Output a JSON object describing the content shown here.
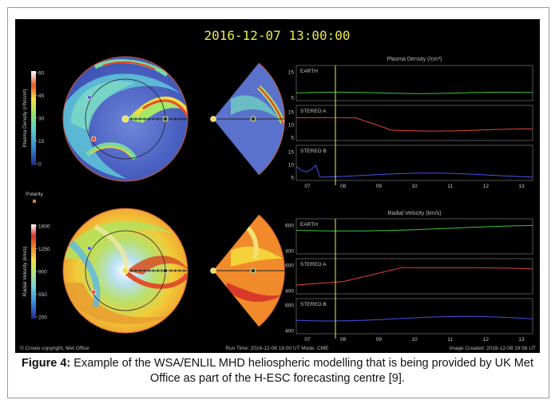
{
  "timestamp": "2016-12-07 13:00:00",
  "colorbars": {
    "density": {
      "label": "Plasma Density (r²N/cm³)",
      "ticks": [
        "60",
        "45",
        "30",
        "15",
        "0"
      ]
    },
    "polarity": {
      "label": "Polarity"
    },
    "velocity": {
      "label": "Radial Velocity (km/s)",
      "ticks": [
        "1600",
        "1250",
        "900",
        "550",
        "200"
      ]
    }
  },
  "plots": {
    "density": {
      "title": "Plasma Density (/cm³)",
      "panels": [
        {
          "name": "EARTH",
          "yticks": [
            "15",
            "5"
          ],
          "color": "#3ec43e"
        },
        {
          "name": "STEREO A",
          "yticks": [
            "15",
            "10",
            "5"
          ],
          "color": "#e0473a"
        },
        {
          "name": "STEREO B",
          "yticks": [
            "15",
            "10",
            "5"
          ],
          "color": "#4a52e6"
        }
      ],
      "xticks": [
        "07",
        "08",
        "09",
        "10",
        "11",
        "12",
        "13"
      ]
    },
    "velocity": {
      "title": "Radial Velocity (km/s)",
      "panels": [
        {
          "name": "EARTH",
          "yticks": [
            "600",
            "400"
          ],
          "color": "#3ec43e"
        },
        {
          "name": "STEREO A",
          "yticks": [
            "600",
            "400"
          ],
          "color": "#e0473a"
        },
        {
          "name": "STEREO B",
          "yticks": [
            "600",
            "400"
          ],
          "color": "#4a52e6"
        }
      ],
      "xticks": [
        "07",
        "08",
        "09",
        "10",
        "11",
        "12",
        "13"
      ]
    }
  },
  "footer": {
    "copyright": "© Crown copyright, Met Office",
    "run": "Run Time: 2016-12-06 16:00 UT   Mode: CME",
    "created": "Image Created: 2016-12-08 19:56 UT"
  },
  "caption": {
    "label": "Figure 4:",
    "text": " Example of the WSA/ENLIL MHD heliospheric modelling that is being provided by UK Met Office as part of the H-ESC forecasting centre [9]."
  }
}
